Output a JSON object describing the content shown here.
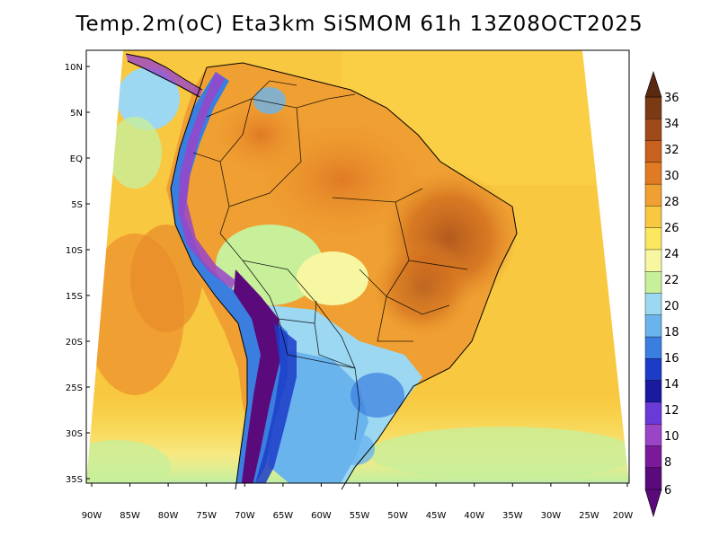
{
  "title": "Temp.2m(oC) Eta3km SiSMOM 61h 13Z08OCT2025",
  "axes": {
    "lat_labels": [
      "10N",
      "5N",
      "EQ",
      "5S",
      "10S",
      "15S",
      "20S",
      "25S",
      "30S",
      "35S"
    ],
    "lon_labels": [
      "90W",
      "85W",
      "80W",
      "75W",
      "70W",
      "65W",
      "60W",
      "55W",
      "50W",
      "45W",
      "40W",
      "35W",
      "30W",
      "25W",
      "20W"
    ]
  },
  "colorbar": {
    "labels": [
      "36",
      "34",
      "32",
      "30",
      "28",
      "26",
      "24",
      "22",
      "20",
      "18",
      "16",
      "14",
      "12",
      "10",
      "8",
      "6"
    ],
    "colors": [
      "#7a3a14",
      "#a04a1c",
      "#c8601e",
      "#e07b24",
      "#f0a032",
      "#f8c840",
      "#fbe85e",
      "#f6f7a0",
      "#c8ef9a",
      "#9cd8f2",
      "#6ab4ee",
      "#3a7ee0",
      "#1c3cc8",
      "#1a1aa0",
      "#6a3ad8",
      "#9a44c8",
      "#7a1a9a",
      "#5a0a7a"
    ]
  }
}
